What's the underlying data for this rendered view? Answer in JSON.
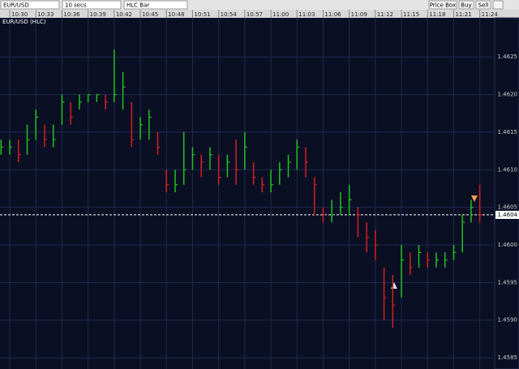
{
  "toolbar": {
    "symbol": "EUR/USD",
    "interval": "10 secs",
    "chart_style": "HLC Bar",
    "buttons": [
      "Price Box",
      "Buy",
      "Sell"
    ]
  },
  "chart_data": {
    "type": "hlc",
    "title": "EUR/USD (HLC)",
    "x": [
      629,
      630,
      631,
      632,
      633,
      634,
      635,
      636,
      637,
      638,
      639,
      640,
      641,
      642,
      643,
      644,
      645,
      646,
      647,
      648,
      649,
      650,
      651,
      652,
      653,
      654,
      655,
      656,
      657,
      658,
      659,
      660,
      661,
      662,
      663,
      664,
      665,
      666,
      667,
      668,
      669,
      670,
      671,
      672,
      673,
      674,
      675,
      676,
      677,
      678,
      679,
      680,
      681,
      682,
      683,
      684
    ],
    "high": [
      1.4614,
      1.4614,
      1.4614,
      1.4616,
      1.4618,
      1.4616,
      1.4616,
      1.462,
      1.4619,
      1.462,
      1.462,
      1.462,
      1.462,
      1.4626,
      1.4623,
      1.4619,
      1.4617,
      1.4618,
      1.4615,
      1.461,
      1.461,
      1.4615,
      1.4613,
      1.4612,
      1.4613,
      1.4612,
      1.4612,
      1.4614,
      1.4615,
      1.4611,
      1.4609,
      1.461,
      1.4611,
      1.4612,
      1.4614,
      1.4613,
      1.4609,
      1.4605,
      1.4606,
      1.4607,
      1.4608,
      1.4605,
      1.4603,
      1.4602,
      1.4597,
      1.4596,
      1.46,
      1.4599,
      1.46,
      1.4599,
      1.4599,
      1.4599,
      1.46,
      1.4604,
      1.4606,
      1.4608
    ],
    "low": [
      1.4612,
      1.4612,
      1.4611,
      1.4612,
      1.4614,
      1.4613,
      1.4613,
      1.4616,
      1.4616,
      1.4618,
      1.4619,
      1.4619,
      1.4618,
      1.4619,
      1.4618,
      1.4613,
      1.4614,
      1.4614,
      1.4612,
      1.4607,
      1.4607,
      1.4608,
      1.461,
      1.4609,
      1.461,
      1.4608,
      1.4609,
      1.4608,
      1.461,
      1.4608,
      1.4607,
      1.4607,
      1.4608,
      1.4609,
      1.461,
      1.4609,
      1.4604,
      1.4603,
      1.4603,
      1.4604,
      1.4604,
      1.4601,
      1.4599,
      1.4598,
      1.459,
      1.4589,
      1.4593,
      1.4596,
      1.4597,
      1.4597,
      1.4597,
      1.4597,
      1.4598,
      1.4599,
      1.4603,
      1.4603
    ],
    "close": [
      1.4613,
      1.4613,
      1.4612,
      1.4614,
      1.4617,
      1.4614,
      1.4614,
      1.4619,
      1.4617,
      1.4619,
      1.462,
      1.462,
      1.4619,
      1.462,
      1.4621,
      1.4614,
      1.4616,
      1.4617,
      1.4613,
      1.4608,
      1.4608,
      1.461,
      1.4612,
      1.4611,
      1.4612,
      1.4609,
      1.4611,
      1.461,
      1.4613,
      1.4609,
      1.4608,
      1.4608,
      1.461,
      1.4611,
      1.4613,
      1.4611,
      1.4608,
      1.4604,
      1.4604,
      1.4605,
      1.4606,
      1.4604,
      1.4601,
      1.46,
      1.4593,
      1.4592,
      1.4598,
      1.4597,
      1.4599,
      1.4598,
      1.4598,
      1.4598,
      1.4599,
      1.4603,
      1.4605,
      1.4604
    ],
    "up_color": "#22c222",
    "down_color": "#d42020",
    "xlim": [
      628.88,
      685.71
    ],
    "xticks": [
      {
        "value": 630,
        "label": "10:30"
      },
      {
        "value": 633,
        "label": "10:33"
      },
      {
        "value": 636,
        "label": "10:36"
      },
      {
        "value": 639,
        "label": "10:39"
      },
      {
        "value": 642,
        "label": "10:42"
      },
      {
        "value": 645,
        "label": "10:45"
      },
      {
        "value": 648,
        "label": "10:48"
      },
      {
        "value": 651,
        "label": "10:51"
      },
      {
        "value": 654,
        "label": "10:54"
      },
      {
        "value": 657,
        "label": "10:57"
      },
      {
        "value": 660,
        "label": "11:00"
      },
      {
        "value": 663,
        "label": "11:03"
      },
      {
        "value": 666,
        "label": "11:06"
      },
      {
        "value": 669,
        "label": "11:09"
      },
      {
        "value": 672,
        "label": "11:12"
      },
      {
        "value": 675,
        "label": "11:15"
      },
      {
        "value": 678,
        "label": "11:18"
      },
      {
        "value": 681,
        "label": "11:21"
      },
      {
        "value": 684,
        "label": "11:24"
      }
    ],
    "ylim": [
      1.45835,
      1.46302
    ],
    "yticks": [
      1.4585,
      {
        "value": 1.459,
        "label": "1.4590"
      },
      1.4595,
      {
        "value": 1.46,
        "label": "1.4600"
      },
      1.4605,
      {
        "value": 1.461,
        "label": "1.4610"
      },
      1.4615,
      {
        "value": 1.462,
        "label": "1.4620"
      },
      1.4625
    ],
    "last_price": 1.4604,
    "grid": true
  }
}
